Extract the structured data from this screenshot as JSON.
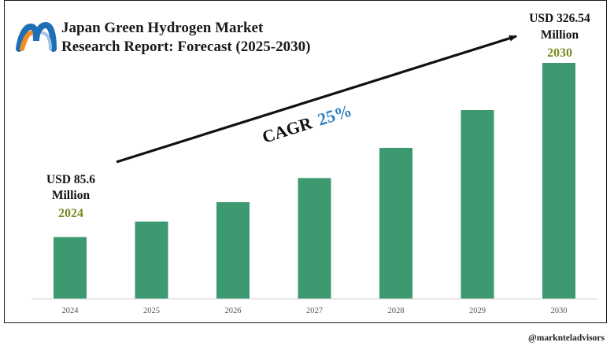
{
  "title": {
    "line1": "Japan Green Hydrogen Market",
    "line2": "Research Report: Forecast (2025-2030)"
  },
  "logo": {
    "icon": "marknteladvisors-logo-icon",
    "colors": [
      "#f28c1e",
      "#1f6fb5",
      "#9ec5e8"
    ]
  },
  "annotations": {
    "start_value_line1": "USD 85.6",
    "start_value_line2": "Million",
    "start_year": "2024",
    "end_value_line1": "USD 326.54",
    "end_value_line2": "Million",
    "end_year": "2030",
    "cagr_label": "CAGR",
    "cagr_value": "25%"
  },
  "watermark": "@marknteladvisors",
  "colors": {
    "bar": "#3d9970",
    "year_accent": "#7a8a1e",
    "cagr_accent": "#2f80c0"
  },
  "chart_data": {
    "type": "bar",
    "categories": [
      "2024",
      "2025",
      "2026",
      "2027",
      "2028",
      "2029",
      "2030"
    ],
    "values": [
      85.6,
      107.0,
      133.75,
      167.19,
      208.98,
      261.23,
      326.54
    ],
    "unit": "USD Million",
    "ylim": [
      0,
      330
    ],
    "grid": false,
    "legend": "none",
    "title": "Japan Green Hydrogen Market Research Report: Forecast (2025-2030)"
  }
}
